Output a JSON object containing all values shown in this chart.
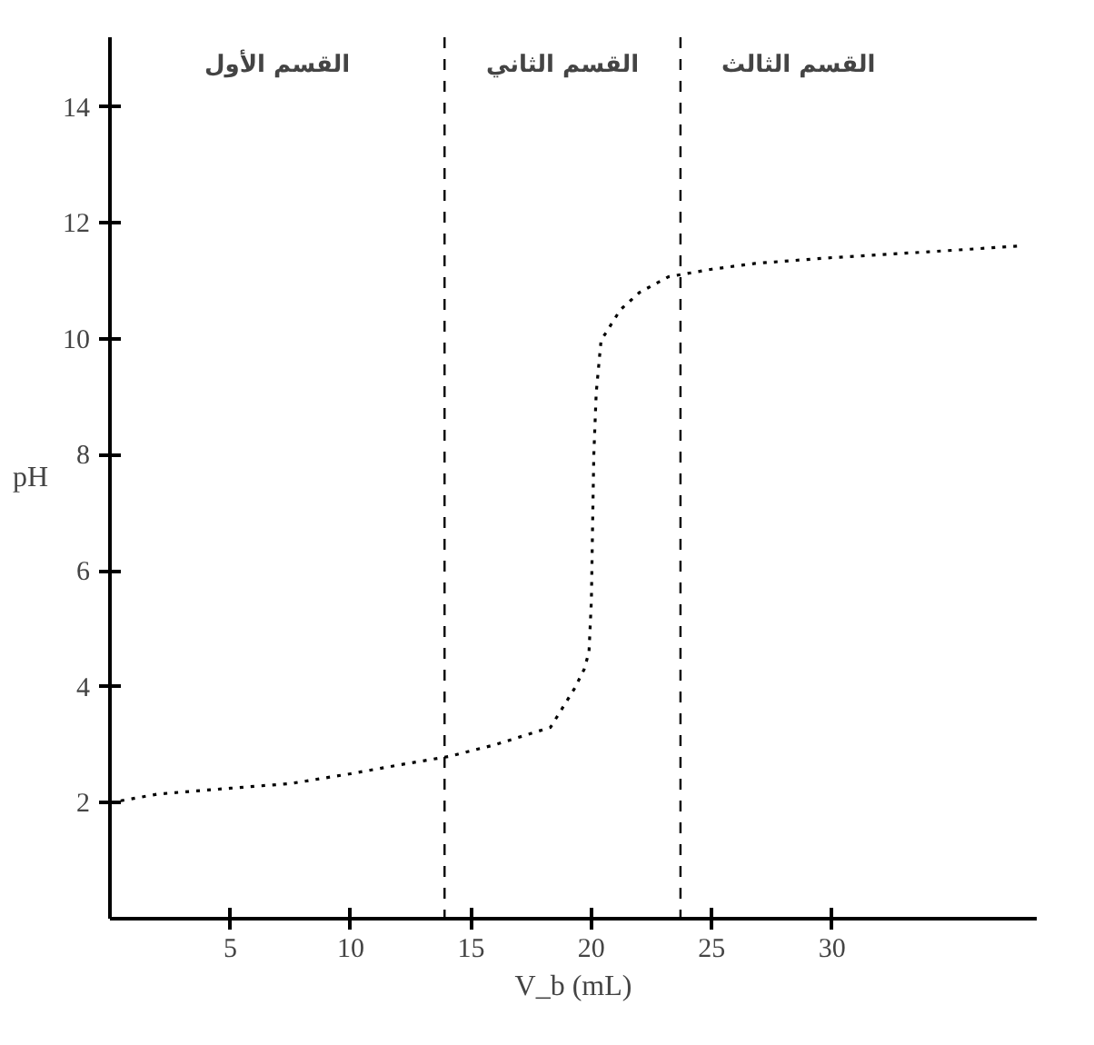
{
  "chart_data": {
    "type": "line",
    "xlabel": "V_b (mL)",
    "ylabel": "pH",
    "xlim": [
      0,
      38.5
    ],
    "ylim": [
      0,
      15.2
    ],
    "xticks": [
      5,
      10,
      15,
      20,
      25,
      30
    ],
    "yticks": [
      2,
      4,
      6,
      8,
      10,
      12,
      14
    ],
    "grid": false,
    "marker": "none",
    "line_style": "dotted",
    "series": [
      {
        "color": "#000000",
        "x": [
          0,
          2,
          5,
          7.5,
          10,
          12,
          14.1,
          16,
          18.3,
          19.3,
          19.7,
          19.9,
          20,
          20.05,
          20.1,
          20.2,
          20.4,
          21.2,
          22,
          23.2,
          25,
          26.8,
          30,
          34,
          37.8
        ],
        "values": [
          2,
          2.15,
          2.25,
          2.33,
          2.5,
          2.65,
          2.8,
          3.0,
          3.3,
          3.97,
          4.3,
          4.6,
          5.5,
          6.8,
          8,
          9.07,
          9.97,
          10.5,
          10.8,
          11.07,
          11.2,
          11.3,
          11.4,
          11.5,
          11.6
        ]
      }
    ],
    "ref_lines": [
      {
        "axis": "x",
        "value": 13.9,
        "line_style": "dashed",
        "color": "#000000"
      },
      {
        "axis": "x",
        "value": 23.7,
        "line_style": "dashed",
        "color": "#000000"
      }
    ],
    "annotations": [
      "القسم الأول",
      "القسم الثاني",
      "القسم الثالث"
    ]
  }
}
